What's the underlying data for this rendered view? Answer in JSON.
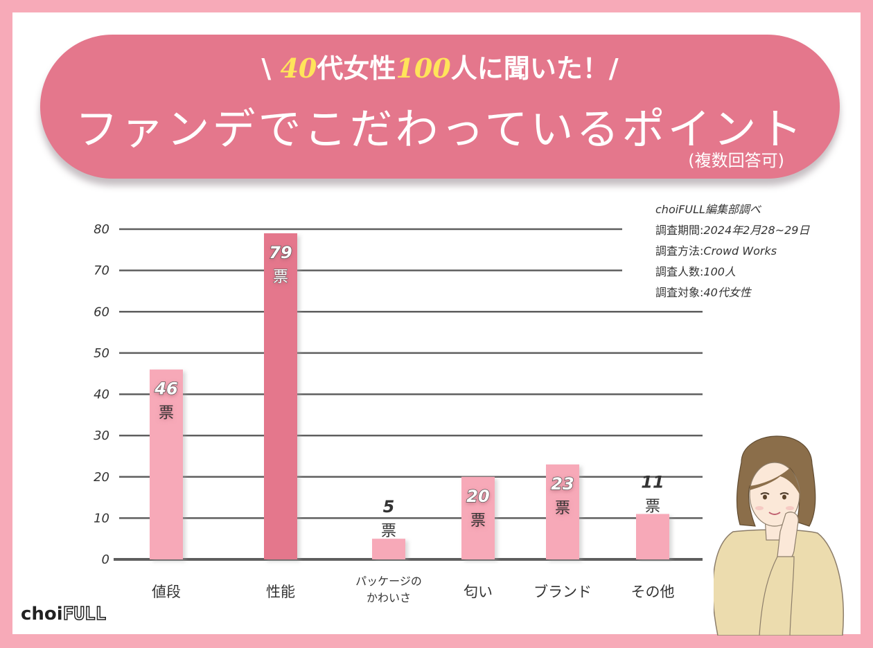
{
  "header": {
    "slash_left": "\\",
    "age": "40",
    "age_suffix": "代女性",
    "count": "100",
    "count_suffix": "人に聞いた！",
    "slash_right": "/",
    "title": "ファンデでこだわっているポイント",
    "note": "(複数回答可)"
  },
  "survey": {
    "source": "choiFULL編集部調べ",
    "period_label": "調査期間:",
    "period_value": "2024年2月28~29日",
    "method_label": "調査方法:",
    "method_value": "Crowd Works",
    "count_label": "調査人数:",
    "count_value": "100人",
    "target_label": "調査対象:",
    "target_value": "40代女性"
  },
  "logo": {
    "part1": "choi",
    "part2": "FULL"
  },
  "chart_data": {
    "type": "bar",
    "categories": [
      "値段",
      "性能",
      "パッケージのかわいさ",
      "匂い",
      "ブランド",
      "その他"
    ],
    "category_lines": [
      [
        "値段"
      ],
      [
        "性能"
      ],
      [
        "パッケージの",
        "かわいさ"
      ],
      [
        "匂い"
      ],
      [
        "ブランド"
      ],
      [
        "その他"
      ]
    ],
    "values": [
      46,
      79,
      5,
      20,
      23,
      11
    ],
    "unit": "票",
    "highlight_index": 1,
    "yticks": [
      0,
      10,
      20,
      30,
      40,
      50,
      60,
      70,
      80
    ],
    "ylim": [
      0,
      80
    ],
    "grid": true,
    "colors": {
      "bar": "#f7a9b8",
      "highlight": "#e4778c",
      "grid": "#5e5e5e"
    }
  }
}
